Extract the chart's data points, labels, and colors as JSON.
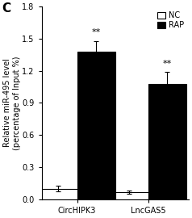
{
  "groups": [
    "CircHIPK3",
    "LncGAS5"
  ],
  "nc_values": [
    0.1,
    0.07
  ],
  "rap_values": [
    1.38,
    1.08
  ],
  "nc_errors": [
    0.025,
    0.015
  ],
  "rap_errors": [
    0.1,
    0.11
  ],
  "nc_color": "white",
  "rap_color": "black",
  "bar_edge_color": "black",
  "ylabel": "Relative miR-495 level\n(percentage of Input %)",
  "ylim": [
    0,
    1.8
  ],
  "yticks": [
    0,
    0.3,
    0.6,
    0.9,
    1.2,
    1.5,
    1.8
  ],
  "panel_label": "C",
  "legend_labels": [
    "NC",
    "RAP"
  ],
  "sig_labels": [
    "**",
    "**"
  ],
  "tick_fontsize": 7,
  "label_fontsize": 7,
  "bar_width": 0.32,
  "x_positions": [
    0.28,
    0.88
  ]
}
